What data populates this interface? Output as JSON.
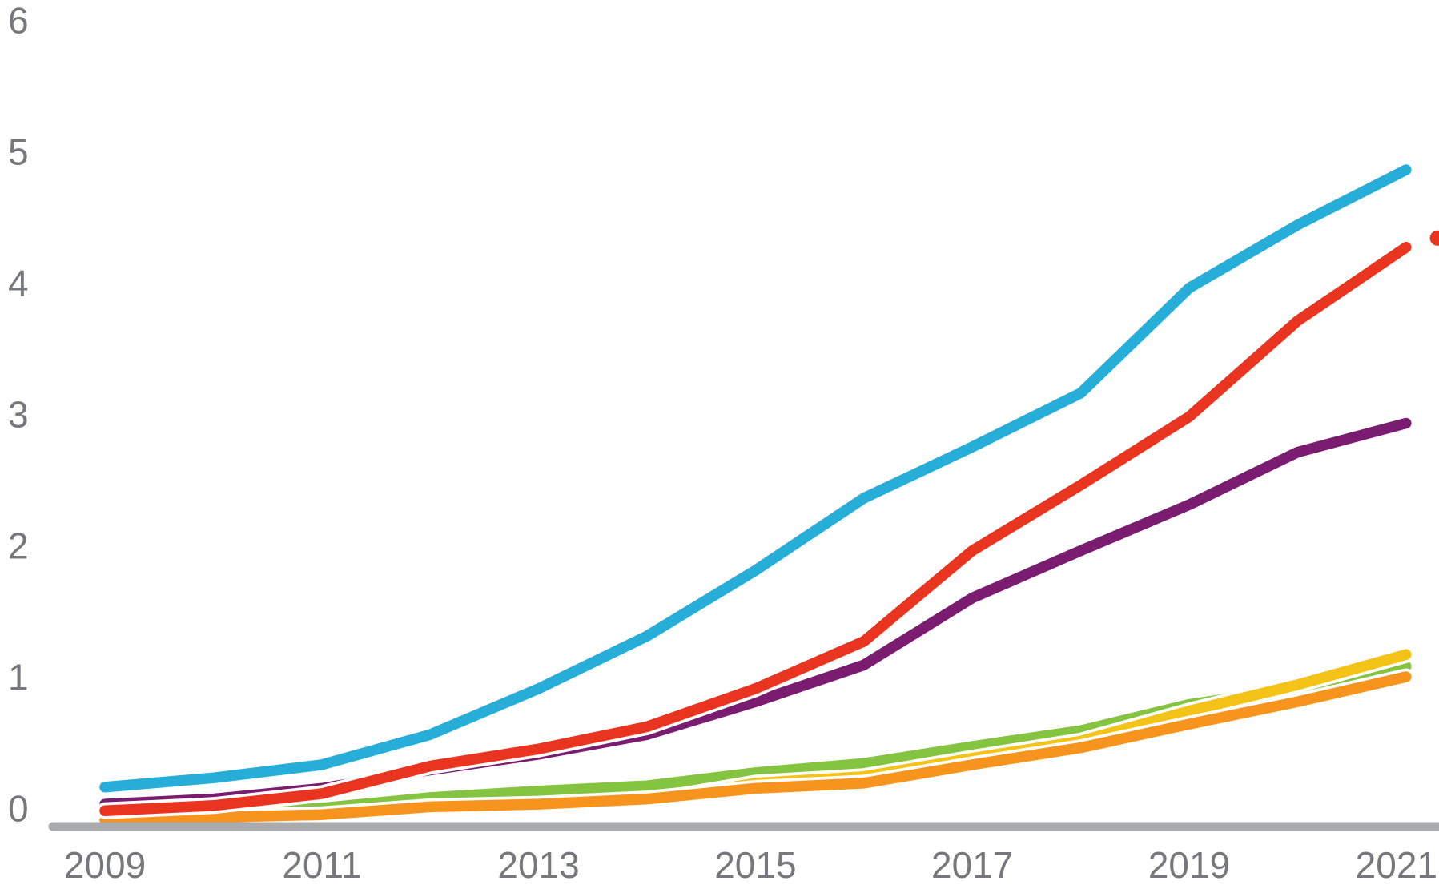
{
  "chart_data": {
    "type": "line",
    "title": "",
    "xlabel": "",
    "ylabel": "",
    "x": [
      2009,
      2010,
      2011,
      2012,
      2013,
      2014,
      2015,
      2016,
      2017,
      2018,
      2019,
      2020,
      2021
    ],
    "series": [
      {
        "name": "light-blue",
        "color": "#27aed8",
        "values": [
          0.3,
          0.37,
          0.47,
          0.7,
          1.05,
          1.45,
          1.95,
          2.5,
          2.89,
          3.3,
          4.1,
          4.58,
          5.0
        ]
      },
      {
        "name": "red",
        "color": "#e93420",
        "values": [
          0.12,
          0.16,
          0.25,
          0.46,
          0.59,
          0.76,
          1.05,
          1.41,
          2.1,
          2.6,
          3.12,
          3.85,
          4.41
        ]
      },
      {
        "name": "purple",
        "color": "#7a1d70",
        "values": [
          0.17,
          0.21,
          0.29,
          0.43,
          0.55,
          0.7,
          0.95,
          1.23,
          1.74,
          2.1,
          2.45,
          2.85,
          3.07
        ]
      },
      {
        "name": "yellow",
        "color": "#f3c317",
        "values": [
          0.03,
          0.05,
          0.07,
          0.13,
          0.15,
          0.19,
          0.33,
          0.38,
          0.52,
          0.65,
          0.88,
          1.08,
          1.31
        ]
      },
      {
        "name": "green",
        "color": "#85c440",
        "values": [
          0.09,
          0.11,
          0.14,
          0.22,
          0.27,
          0.31,
          0.41,
          0.48,
          0.61,
          0.73,
          0.93,
          1.05,
          1.22
        ]
      },
      {
        "name": "orange",
        "color": "#f7941e",
        "values": [
          0.05,
          0.07,
          0.09,
          0.15,
          0.17,
          0.21,
          0.29,
          0.33,
          0.47,
          0.6,
          0.78,
          0.95,
          1.14
        ]
      }
    ],
    "draw_order": [
      "green",
      "yellow",
      "orange",
      "purple",
      "red",
      "light-blue"
    ],
    "y_tick_labels": [
      "0",
      "1",
      "2",
      "3",
      "4",
      "5",
      "6"
    ],
    "y_tick_values": [
      0,
      1,
      2,
      3,
      4,
      5,
      6
    ],
    "x_tick_labels": [
      "2009",
      "2011",
      "2013",
      "2015",
      "2017",
      "2019",
      "2021"
    ],
    "x_tick_years": [
      2009,
      2011,
      2013,
      2015,
      2017,
      2019,
      2021
    ],
    "ylim": [
      0,
      6
    ],
    "xlim": [
      2009,
      2021
    ],
    "grid": false,
    "legend": "none",
    "axis_color": "#a9abae",
    "label_color": "#77787b",
    "clipped_marker": {
      "series": "red",
      "x": 2021.29,
      "value": 4.48,
      "color": "#e93420"
    }
  }
}
